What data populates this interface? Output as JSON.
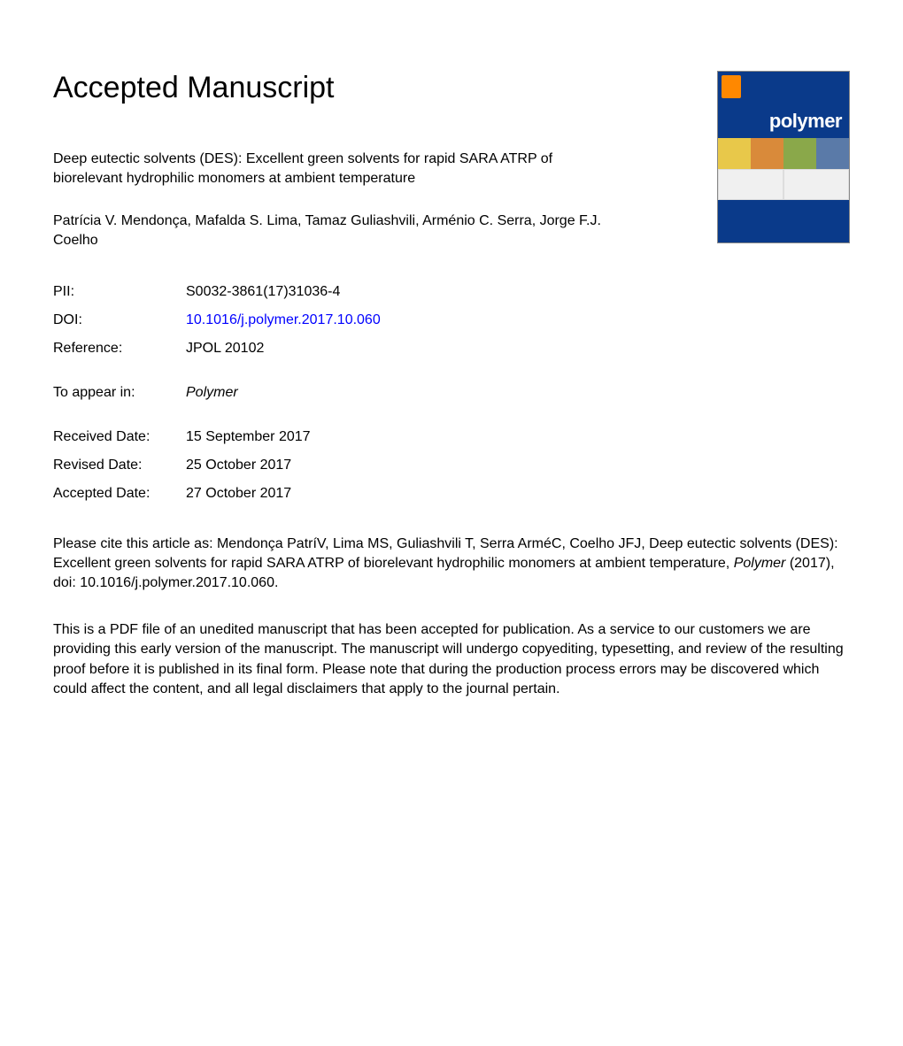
{
  "heading": "Accepted Manuscript",
  "title": "Deep eutectic solvents (DES): Excellent green solvents for rapid SARA ATRP of biorelevant hydrophilic monomers at ambient temperature",
  "authors": "Patrícia V. Mendonça, Mafalda S. Lima, Tamaz Guliashvili, Arménio C. Serra, Jorge F.J. Coelho",
  "meta": {
    "pii_label": "PII:",
    "pii_value": "S0032-3861(17)31036-4",
    "doi_label": "DOI:",
    "doi_value": "10.1016/j.polymer.2017.10.060",
    "reference_label": "Reference:",
    "reference_value": "JPOL 20102",
    "appear_label": "To appear in:",
    "appear_value": "Polymer",
    "received_label": "Received Date:",
    "received_value": "15 September 2017",
    "revised_label": "Revised Date:",
    "revised_value": "25 October 2017",
    "accepted_label": "Accepted Date:",
    "accepted_value": "27 October 2017"
  },
  "citation_prefix": "Please cite this article as: Mendonça PatríV, Lima MS, Guliashvili T, Serra ArméC, Coelho JFJ, Deep eutectic solvents (DES): Excellent green solvents for rapid SARA ATRP of biorelevant hydrophilic monomers at ambient temperature, ",
  "citation_journal": "Polymer",
  "citation_suffix": " (2017), doi: 10.1016/j.polymer.2017.10.060.",
  "disclaimer": "This is a PDF file of an unedited manuscript that has been accepted for publication. As a service to our customers we are providing this early version of the manuscript. The manuscript will undergo copyediting, typesetting, and review of the resulting proof before it is published in its final form. Please note that during the production process errors may be discovered which could affect the content, and all legal disclaimers that apply to the journal pertain.",
  "cover": {
    "journal_name": "polymer",
    "top_color": "#0a3a8a",
    "badge_color": "#ff8800",
    "bottom_color": "#0a3a8a",
    "title_color": "#ffffff"
  }
}
